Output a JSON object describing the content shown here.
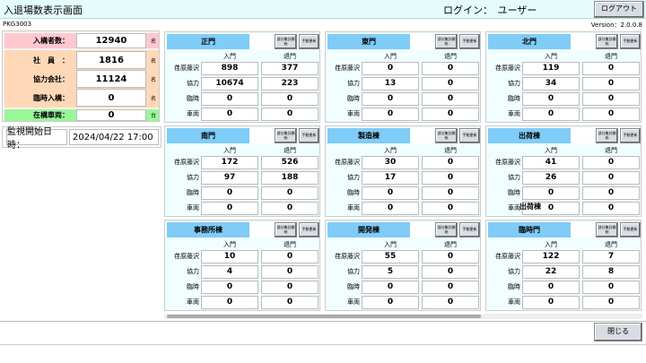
{
  "header": {
    "title": "入退場数表示画面",
    "login": "ログイン：　ユーザー",
    "logout_label": "ログアウト",
    "screen_id": "PKG3003",
    "version": "Version：2.0.0.8"
  },
  "summary": {
    "rows": [
      {
        "label": "入構者数：",
        "value": "12940",
        "unit": "名",
        "color": "#ffc8d0"
      },
      {
        "label": "社　員　：",
        "value": "1816",
        "unit": "名",
        "color": "#ffd8b8"
      },
      {
        "label": "協力会社：",
        "value": "11124",
        "unit": "名",
        "color": "#ffd8b8"
      },
      {
        "label": "臨時入構：",
        "value": "0",
        "unit": "名",
        "color": "#ffd8b8"
      },
      {
        "label": "在構車両：",
        "value": "0",
        "unit": "台",
        "color": "#98f898"
      }
    ]
  },
  "monitor": {
    "label": "監視開始日時：",
    "value": "2024/04/22 17:00"
  },
  "panel_common": {
    "partial_button": "部分集計開始",
    "manual_button": "手動更新",
    "col_in": "入門",
    "col_out": "退門",
    "row_labels": [
      "荏原藤沢",
      "協力",
      "臨時",
      "車両"
    ]
  },
  "gates": [
    {
      "name": "正門",
      "in": [
        "898",
        "10674",
        "0",
        "0"
      ],
      "out": [
        "377",
        "223",
        "0",
        "0"
      ]
    },
    {
      "name": "東門",
      "in": [
        "0",
        "13",
        "0",
        "0"
      ],
      "out": [
        "0",
        "0",
        "0",
        "0"
      ]
    },
    {
      "name": "北門",
      "in": [
        "119",
        "34",
        "0",
        "0"
      ],
      "out": [
        "0",
        "0",
        "0",
        "0"
      ]
    },
    {
      "name": "南門",
      "in": [
        "172",
        "97",
        "0",
        "0"
      ],
      "out": [
        "526",
        "188",
        "0",
        "0"
      ]
    },
    {
      "name": "製造棟",
      "in": [
        "30",
        "17",
        "0",
        "0"
      ],
      "out": [
        "0",
        "0",
        "0",
        "0"
      ]
    },
    {
      "name": "出荷棟",
      "in": [
        "41",
        "26",
        "0",
        "0"
      ],
      "out": [
        "0",
        "0",
        "0",
        "0"
      ],
      "stray_label": "出荷棟"
    },
    {
      "name": "事務所棟",
      "in": [
        "10",
        "4",
        "0",
        "0"
      ],
      "out": [
        "0",
        "0",
        "0",
        "0"
      ]
    },
    {
      "name": "開発棟",
      "in": [
        "55",
        "5",
        "0",
        "0"
      ],
      "out": [
        "0",
        "0",
        "0",
        "0"
      ]
    },
    {
      "name": "臨時門",
      "in": [
        "122",
        "22",
        "0",
        "0"
      ],
      "out": [
        "7",
        "8",
        "0",
        "0"
      ]
    }
  ],
  "footer": {
    "close_label": "閉じる"
  }
}
